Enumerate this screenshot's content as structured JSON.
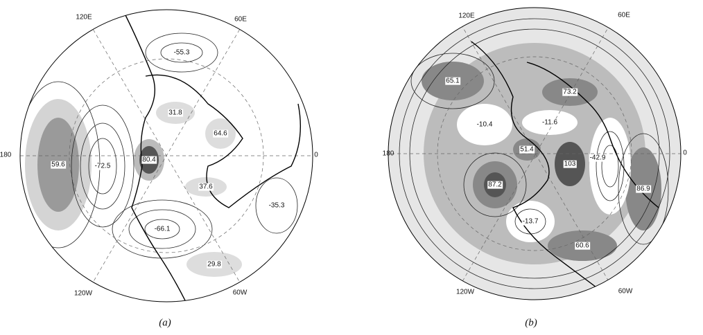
{
  "panels": [
    {
      "caption": "(a)",
      "lon_labels": [
        "120E",
        "60E",
        "180",
        "0",
        "120W",
        "60W"
      ],
      "contour_labels": [
        "-55.3",
        "31.8",
        "64.6",
        "80.4",
        "-72.5",
        "59.6",
        "37.6",
        "-35.3",
        "-66.1",
        "29.8"
      ]
    },
    {
      "caption": "(b)",
      "lon_labels": [
        "120E",
        "60E",
        "180",
        "0",
        "120W",
        "60W"
      ],
      "contour_labels": [
        "65.1",
        "73.2",
        "-10.4",
        "-11.6",
        "51.4",
        "103",
        "-42.9",
        "87.2",
        "86.9",
        "-13.7",
        "60.6"
      ]
    }
  ]
}
